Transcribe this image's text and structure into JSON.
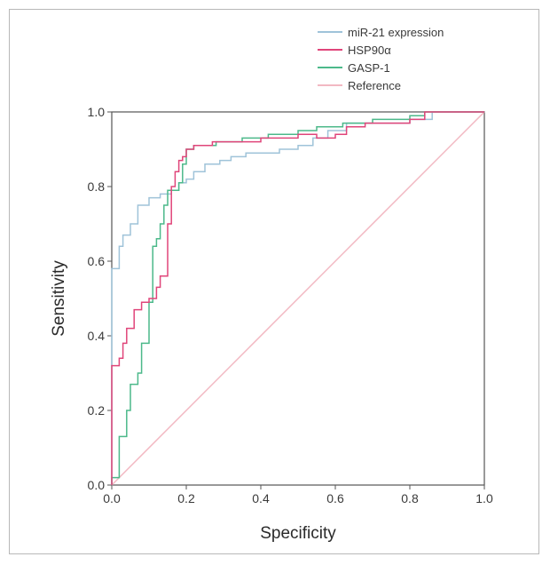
{
  "chart_data": {
    "type": "line",
    "title": "",
    "xlabel": "Specificity",
    "ylabel": "Sensitivity",
    "xlim": [
      0.0,
      1.0
    ],
    "ylim": [
      0.0,
      1.0
    ],
    "xticks": [
      "0.0",
      "0.2",
      "0.4",
      "0.6",
      "0.8",
      "1.0"
    ],
    "yticks": [
      "0.0",
      "0.2",
      "0.4",
      "0.6",
      "0.8",
      "1.0"
    ],
    "grid": false,
    "legend_position": "top-right",
    "series": [
      {
        "name": "miR-21 expression",
        "color": "#9fc3d9",
        "points": [
          [
            0,
            0
          ],
          [
            0,
            0.58
          ],
          [
            0.02,
            0.58
          ],
          [
            0.02,
            0.64
          ],
          [
            0.03,
            0.64
          ],
          [
            0.03,
            0.67
          ],
          [
            0.05,
            0.67
          ],
          [
            0.05,
            0.7
          ],
          [
            0.07,
            0.7
          ],
          [
            0.07,
            0.75
          ],
          [
            0.1,
            0.75
          ],
          [
            0.1,
            0.77
          ],
          [
            0.13,
            0.77
          ],
          [
            0.13,
            0.78
          ],
          [
            0.16,
            0.78
          ],
          [
            0.16,
            0.79
          ],
          [
            0.18,
            0.79
          ],
          [
            0.18,
            0.81
          ],
          [
            0.2,
            0.81
          ],
          [
            0.2,
            0.82
          ],
          [
            0.22,
            0.82
          ],
          [
            0.22,
            0.84
          ],
          [
            0.25,
            0.84
          ],
          [
            0.25,
            0.86
          ],
          [
            0.29,
            0.86
          ],
          [
            0.29,
            0.87
          ],
          [
            0.32,
            0.87
          ],
          [
            0.32,
            0.88
          ],
          [
            0.36,
            0.88
          ],
          [
            0.36,
            0.89
          ],
          [
            0.45,
            0.89
          ],
          [
            0.45,
            0.9
          ],
          [
            0.5,
            0.9
          ],
          [
            0.5,
            0.91
          ],
          [
            0.54,
            0.91
          ],
          [
            0.54,
            0.93
          ],
          [
            0.58,
            0.93
          ],
          [
            0.58,
            0.95
          ],
          [
            0.63,
            0.95
          ],
          [
            0.63,
            0.97
          ],
          [
            0.8,
            0.97
          ],
          [
            0.8,
            0.98
          ],
          [
            0.86,
            0.98
          ],
          [
            0.86,
            1.0
          ],
          [
            1.0,
            1.0
          ]
        ]
      },
      {
        "name": "HSP90α",
        "color": "#e0457a",
        "points": [
          [
            0,
            0
          ],
          [
            0,
            0.32
          ],
          [
            0.02,
            0.32
          ],
          [
            0.02,
            0.34
          ],
          [
            0.03,
            0.34
          ],
          [
            0.03,
            0.38
          ],
          [
            0.04,
            0.38
          ],
          [
            0.04,
            0.42
          ],
          [
            0.06,
            0.42
          ],
          [
            0.06,
            0.47
          ],
          [
            0.08,
            0.47
          ],
          [
            0.08,
            0.49
          ],
          [
            0.1,
            0.49
          ],
          [
            0.1,
            0.5
          ],
          [
            0.12,
            0.5
          ],
          [
            0.12,
            0.53
          ],
          [
            0.13,
            0.53
          ],
          [
            0.13,
            0.56
          ],
          [
            0.15,
            0.56
          ],
          [
            0.15,
            0.7
          ],
          [
            0.16,
            0.7
          ],
          [
            0.16,
            0.8
          ],
          [
            0.17,
            0.8
          ],
          [
            0.17,
            0.84
          ],
          [
            0.18,
            0.84
          ],
          [
            0.18,
            0.87
          ],
          [
            0.19,
            0.87
          ],
          [
            0.19,
            0.88
          ],
          [
            0.2,
            0.88
          ],
          [
            0.2,
            0.9
          ],
          [
            0.22,
            0.9
          ],
          [
            0.22,
            0.91
          ],
          [
            0.27,
            0.91
          ],
          [
            0.27,
            0.92
          ],
          [
            0.4,
            0.92
          ],
          [
            0.4,
            0.93
          ],
          [
            0.5,
            0.93
          ],
          [
            0.5,
            0.94
          ],
          [
            0.55,
            0.94
          ],
          [
            0.55,
            0.93
          ],
          [
            0.6,
            0.93
          ],
          [
            0.6,
            0.94
          ],
          [
            0.63,
            0.94
          ],
          [
            0.63,
            0.96
          ],
          [
            0.68,
            0.96
          ],
          [
            0.68,
            0.97
          ],
          [
            0.8,
            0.97
          ],
          [
            0.8,
            0.98
          ],
          [
            0.84,
            0.98
          ],
          [
            0.84,
            1.0
          ],
          [
            1.0,
            1.0
          ]
        ]
      },
      {
        "name": "GASP-1",
        "color": "#4cb98a",
        "points": [
          [
            0,
            0
          ],
          [
            0,
            0.02
          ],
          [
            0.02,
            0.02
          ],
          [
            0.02,
            0.13
          ],
          [
            0.04,
            0.13
          ],
          [
            0.04,
            0.2
          ],
          [
            0.05,
            0.2
          ],
          [
            0.05,
            0.27
          ],
          [
            0.07,
            0.27
          ],
          [
            0.07,
            0.3
          ],
          [
            0.08,
            0.3
          ],
          [
            0.08,
            0.38
          ],
          [
            0.1,
            0.38
          ],
          [
            0.1,
            0.49
          ],
          [
            0.11,
            0.49
          ],
          [
            0.11,
            0.64
          ],
          [
            0.12,
            0.64
          ],
          [
            0.12,
            0.66
          ],
          [
            0.13,
            0.66
          ],
          [
            0.13,
            0.7
          ],
          [
            0.14,
            0.7
          ],
          [
            0.14,
            0.75
          ],
          [
            0.15,
            0.75
          ],
          [
            0.15,
            0.79
          ],
          [
            0.18,
            0.79
          ],
          [
            0.18,
            0.81
          ],
          [
            0.19,
            0.81
          ],
          [
            0.19,
            0.86
          ],
          [
            0.2,
            0.86
          ],
          [
            0.2,
            0.9
          ],
          [
            0.22,
            0.9
          ],
          [
            0.22,
            0.91
          ],
          [
            0.28,
            0.91
          ],
          [
            0.28,
            0.92
          ],
          [
            0.35,
            0.92
          ],
          [
            0.35,
            0.93
          ],
          [
            0.42,
            0.93
          ],
          [
            0.42,
            0.94
          ],
          [
            0.5,
            0.94
          ],
          [
            0.5,
            0.95
          ],
          [
            0.55,
            0.95
          ],
          [
            0.55,
            0.96
          ],
          [
            0.62,
            0.96
          ],
          [
            0.62,
            0.97
          ],
          [
            0.7,
            0.97
          ],
          [
            0.7,
            0.98
          ],
          [
            0.8,
            0.98
          ],
          [
            0.8,
            0.99
          ],
          [
            0.84,
            0.99
          ],
          [
            0.84,
            1.0
          ],
          [
            1.0,
            1.0
          ]
        ]
      },
      {
        "name": "Reference",
        "color": "#f2b8c2",
        "points": [
          [
            0,
            0
          ],
          [
            1,
            1
          ]
        ]
      }
    ]
  }
}
